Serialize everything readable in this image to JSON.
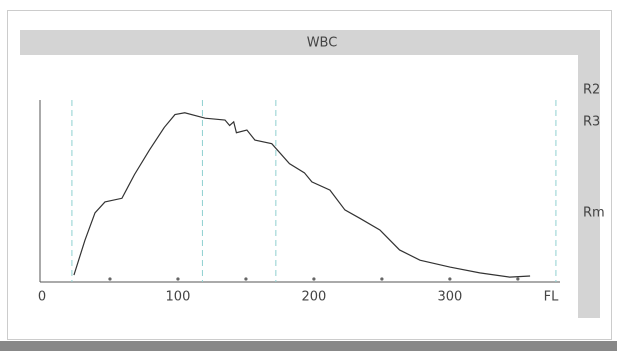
{
  "chart_data": {
    "type": "line",
    "title": "WBC",
    "x_label": "FL",
    "side_labels": [
      "R2",
      "R3",
      "Rm"
    ],
    "x": [
      23.5,
      31.6,
      39,
      46.3,
      58.8,
      68,
      79,
      90,
      97.8,
      105,
      120,
      134.6,
      138,
      141,
      143,
      150.7,
      156.6,
      169,
      182,
      193,
      198.5,
      211.8,
      222.8,
      233.8,
      248.5,
      263,
      278,
      300,
      322,
      344,
      359
    ],
    "series": [
      {
        "name": "WBC",
        "color": "#333333",
        "values": [
          3.8,
          23,
          38,
          44,
          46,
          59,
          72.5,
          85,
          92,
          93,
          90,
          89,
          86,
          88,
          82,
          83.5,
          78,
          76,
          65,
          60,
          55,
          50.5,
          39.6,
          35,
          28.6,
          17.6,
          12,
          8.2,
          5,
          2.7,
          3.3
        ]
      }
    ],
    "xlim": [
      0,
      381
    ],
    "ylim": [
      0,
      100
    ],
    "xticks": [
      0,
      100,
      200,
      300
    ],
    "xminor": [
      50,
      100,
      150,
      200,
      250,
      300,
      350
    ],
    "threshold_lines": [
      22,
      118,
      172,
      378
    ],
    "threshold_color": "#8fd0d0"
  }
}
